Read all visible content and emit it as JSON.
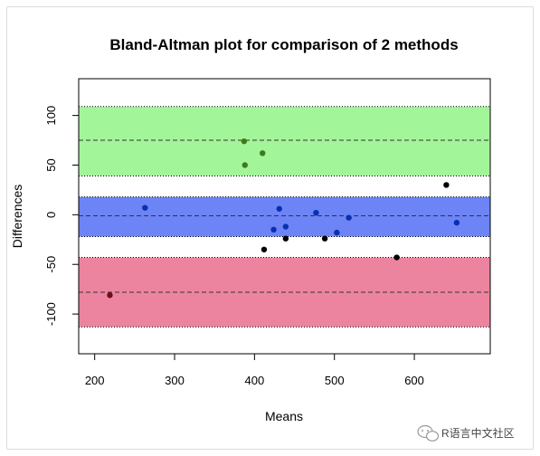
{
  "chart_data": {
    "type": "scatter",
    "title": "Bland-Altman plot for comparison of 2 methods",
    "xlabel": "Means",
    "ylabel": "Differences",
    "xlim": [
      180,
      695
    ],
    "ylim": [
      -140,
      137
    ],
    "x_ticks": [
      200,
      300,
      400,
      500,
      600
    ],
    "y_ticks": [
      -100,
      -50,
      0,
      50,
      100
    ],
    "grid": false,
    "bands": [
      {
        "name": "upper",
        "lower": 39,
        "upper": 109,
        "center": 75,
        "color": "#a3f59a"
      },
      {
        "name": "mean",
        "lower": -22,
        "upper": 18,
        "center": -1,
        "color": "#6c84f5"
      },
      {
        "name": "lower",
        "lower": -113,
        "upper": -43,
        "center": -78,
        "color": "#ec849f"
      }
    ],
    "points": [
      {
        "x": 219,
        "y": -81,
        "color": "#6b0f1a"
      },
      {
        "x": 263,
        "y": 7,
        "color": "#0a2fb0"
      },
      {
        "x": 387,
        "y": 74,
        "color": "#3d7a1a"
      },
      {
        "x": 388,
        "y": 50,
        "color": "#3d7a1a"
      },
      {
        "x": 410,
        "y": 62,
        "color": "#3d7a1a"
      },
      {
        "x": 412,
        "y": -35,
        "color": "#000000"
      },
      {
        "x": 424,
        "y": -15,
        "color": "#0a2fb0"
      },
      {
        "x": 431,
        "y": 6,
        "color": "#0a2fb0"
      },
      {
        "x": 439,
        "y": -12,
        "color": "#0a2fb0"
      },
      {
        "x": 439,
        "y": -24,
        "color": "#000000"
      },
      {
        "x": 477,
        "y": 2,
        "color": "#0a2fb0"
      },
      {
        "x": 488,
        "y": -24,
        "color": "#000000"
      },
      {
        "x": 503,
        "y": -18,
        "color": "#0a2fb0"
      },
      {
        "x": 518,
        "y": -3,
        "color": "#0a2fb0"
      },
      {
        "x": 578,
        "y": -43,
        "color": "#000000"
      },
      {
        "x": 640,
        "y": 30,
        "color": "#000000"
      },
      {
        "x": 653,
        "y": -8,
        "color": "#0a2fb0"
      }
    ]
  },
  "watermark": {
    "text": "R语言中文社区",
    "icon": "wechat-icon"
  }
}
